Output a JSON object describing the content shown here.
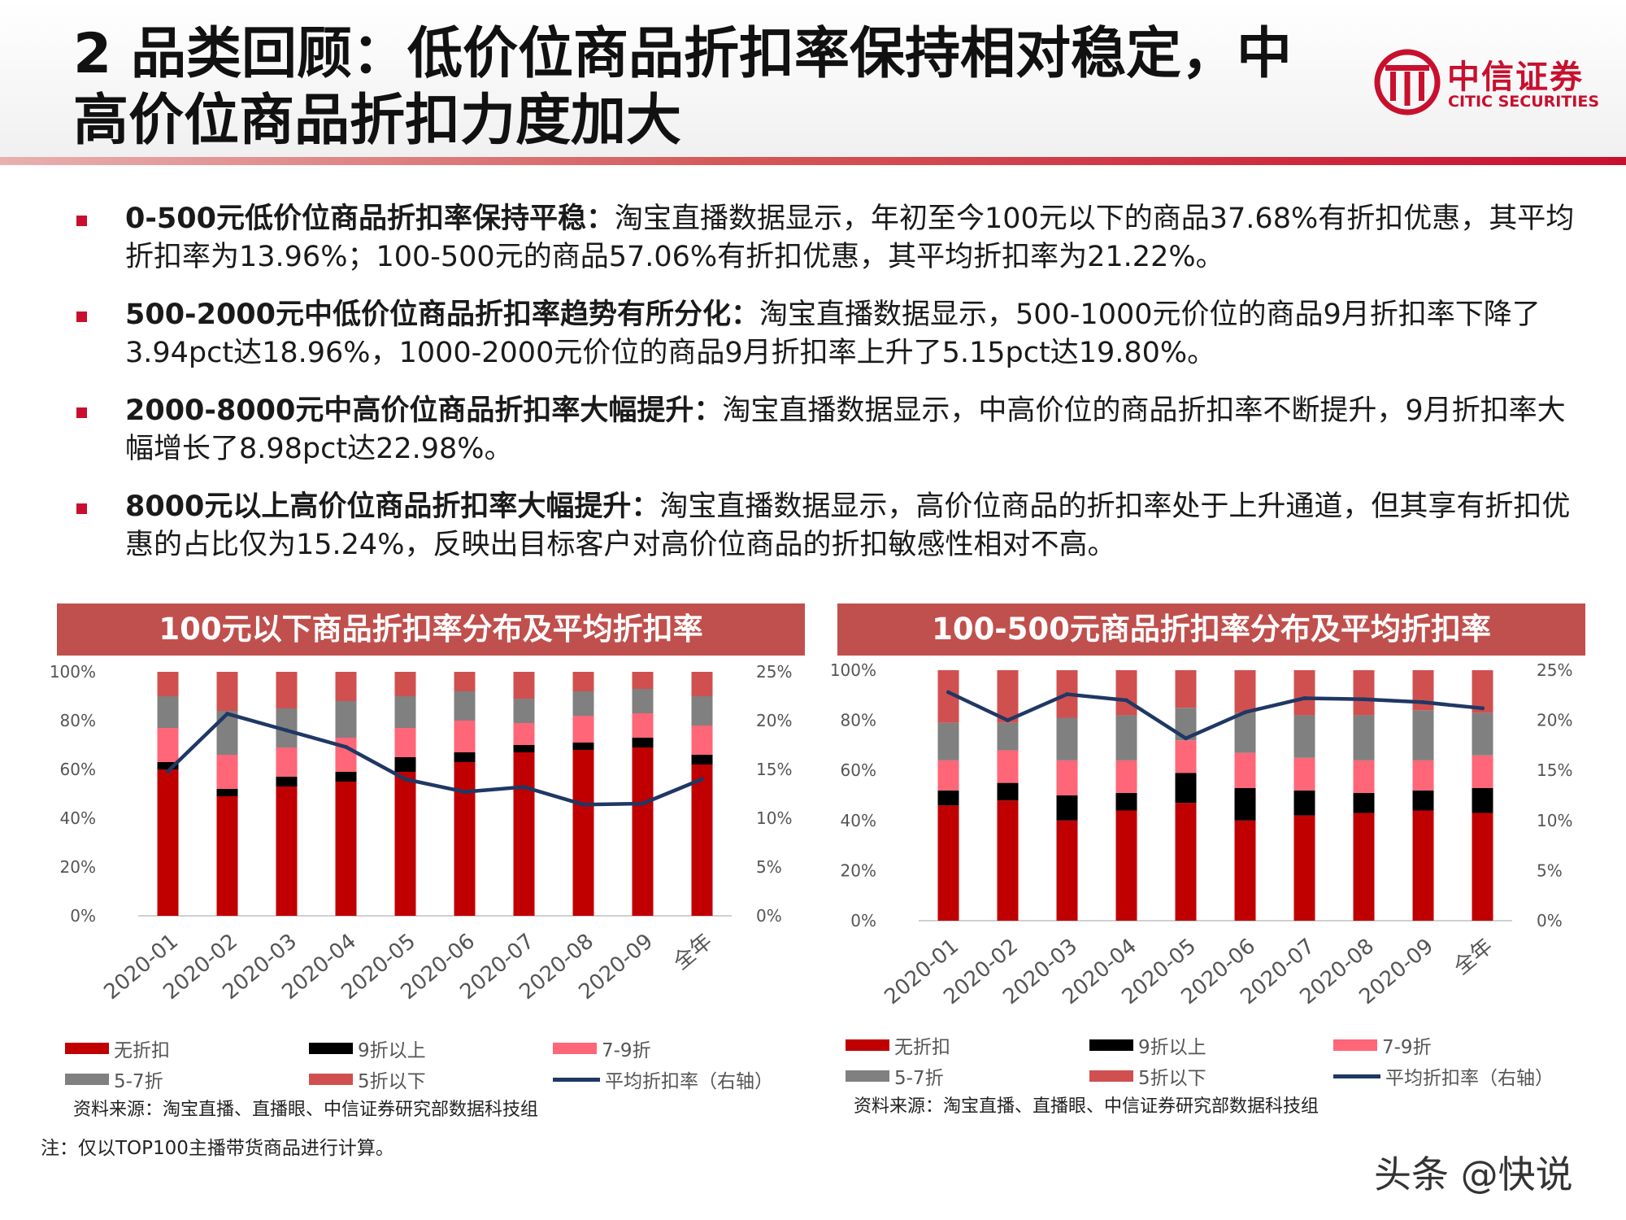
{
  "title": "2 品类回顾：低价位商品折扣率保持相对稳定，中高价位商品折扣力度加大",
  "logo": {
    "cn": "中信证券",
    "en": "CITIC SECURITIES"
  },
  "bullets": [
    {
      "lead": "0-500元低价位商品折扣率保持平稳：",
      "text": "淘宝直播数据显示，年初至今100元以下的商品37.68%有折扣优惠，其平均折扣率为13.96%；100-500元的商品57.06%有折扣优惠，其平均折扣率为21.22%。"
    },
    {
      "lead": "500-2000元中低价位商品折扣率趋势有所分化：",
      "text": "淘宝直播数据显示，500-1000元价位的商品9月折扣率下降了3.94pct达18.96%，1000-2000元价位的商品9月折扣率上升了5.15pct达19.80%。"
    },
    {
      "lead": "2000-8000元中高价位商品折扣率大幅提升：",
      "text": "淘宝直播数据显示，中高价位的商品折扣率不断提升，9月折扣率大幅增长了8.98pct达22.98%。"
    },
    {
      "lead": "8000元以上高价位商品折扣率大幅提升：",
      "text": "淘宝直播数据显示，高价位商品的折扣率处于上升通道，但其享有折扣优惠的占比仅为15.24%，反映出目标客户对高价位商品的折扣敏感性相对不高。"
    }
  ],
  "legend_labels": [
    "无折扣",
    "9折以上",
    "7-9折",
    "5-7折",
    "5折以下",
    "平均折扣率（右轴）"
  ],
  "series_colors": [
    "#c00000",
    "#000000",
    "#ff6677",
    "#808080",
    "#d05050"
  ],
  "line_color": "#1f3864",
  "chart_data": [
    {
      "type": "bar",
      "stacked": true,
      "title": "100元以下商品折扣率分布及平均折扣率",
      "categories": [
        "2020-01",
        "2020-02",
        "2020-03",
        "2020-04",
        "2020-05",
        "2020-06",
        "2020-07",
        "2020-08",
        "2020-09",
        "全年"
      ],
      "y_ticks": [
        "0%",
        "20%",
        "40%",
        "60%",
        "80%",
        "100%"
      ],
      "y2_ticks": [
        "0%",
        "5%",
        "10%",
        "15%",
        "20%",
        "25%"
      ],
      "ylim": [
        0,
        100
      ],
      "y2lim": [
        0,
        25
      ],
      "series": [
        {
          "name": "无折扣",
          "values": [
            60,
            49,
            53,
            55,
            59,
            63,
            67,
            68,
            69,
            62
          ]
        },
        {
          "name": "9折以上",
          "values": [
            3,
            3,
            4,
            4,
            6,
            4,
            3,
            3,
            4,
            4
          ]
        },
        {
          "name": "7-9折",
          "values": [
            14,
            14,
            12,
            14,
            12,
            13,
            9,
            11,
            10,
            12
          ]
        },
        {
          "name": "5-7折",
          "values": [
            13,
            18,
            16,
            15,
            13,
            12,
            10,
            10,
            10,
            12
          ]
        },
        {
          "name": "5折以下",
          "values": [
            10,
            16,
            15,
            12,
            10,
            8,
            11,
            8,
            7,
            10
          ]
        }
      ],
      "line": {
        "name": "平均折扣率（右轴）",
        "values": [
          14.8,
          20.7,
          19.0,
          17.3,
          14.0,
          12.7,
          13.2,
          11.4,
          11.5,
          14.0
        ]
      },
      "source": "资料来源：淘宝直播、直播眼、中信证券研究部数据科技组"
    },
    {
      "type": "bar",
      "stacked": true,
      "title": "100-500元商品折扣率分布及平均折扣率",
      "categories": [
        "2020-01",
        "2020-02",
        "2020-03",
        "2020-04",
        "2020-05",
        "2020-06",
        "2020-07",
        "2020-08",
        "2020-09",
        "全年"
      ],
      "y_ticks": [
        "0%",
        "20%",
        "40%",
        "60%",
        "80%",
        "100%"
      ],
      "y2_ticks": [
        "0%",
        "5%",
        "10%",
        "15%",
        "20%",
        "25%"
      ],
      "ylim": [
        0,
        100
      ],
      "y2lim": [
        0,
        25
      ],
      "series": [
        {
          "name": "无折扣",
          "values": [
            46,
            48,
            40,
            44,
            47,
            40,
            42,
            43,
            44,
            43
          ]
        },
        {
          "name": "9折以上",
          "values": [
            6,
            7,
            10,
            7,
            12,
            13,
            10,
            8,
            8,
            10
          ]
        },
        {
          "name": "7-9折",
          "values": [
            12,
            13,
            14,
            13,
            13,
            14,
            13,
            13,
            12,
            13
          ]
        },
        {
          "name": "5-7折",
          "values": [
            15,
            11,
            17,
            18,
            13,
            16,
            17,
            18,
            20,
            17
          ]
        },
        {
          "name": "5折以下",
          "values": [
            21,
            21,
            19,
            18,
            15,
            17,
            18,
            18,
            16,
            17
          ]
        }
      ],
      "line": {
        "name": "平均折扣率（右轴）",
        "values": [
          22.8,
          20.0,
          22.6,
          22.0,
          18.2,
          20.8,
          22.2,
          22.1,
          21.8,
          21.2
        ]
      },
      "source": "资料来源：淘宝直播、直播眼、中信证券研究部数据科技组"
    }
  ],
  "note": "注：仅以TOP100主播带货商品进行计算。",
  "watermark": "头条 @快说"
}
